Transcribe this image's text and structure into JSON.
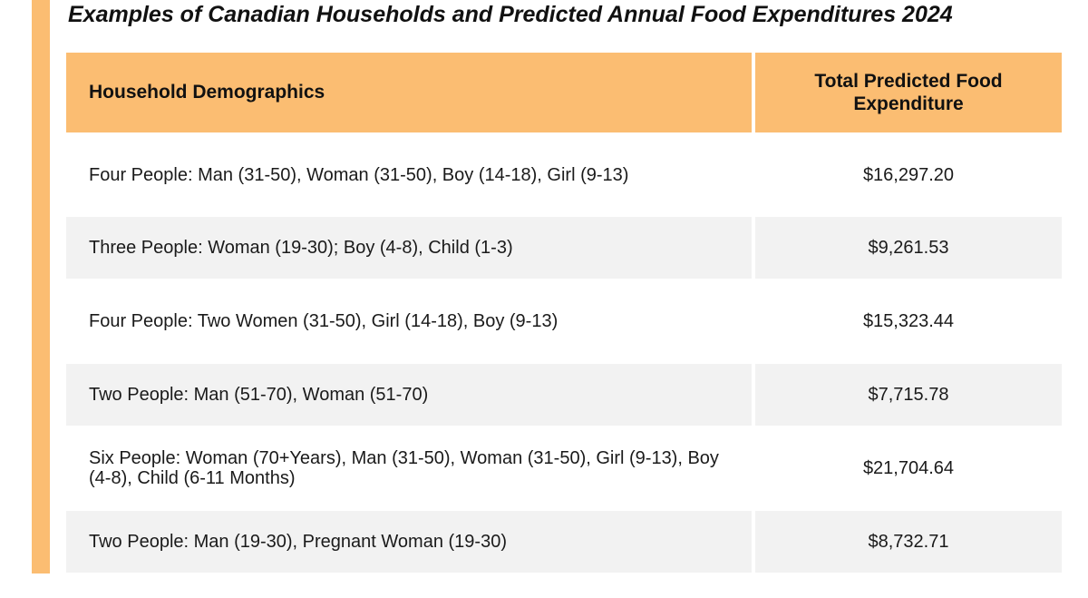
{
  "title": "Examples of Canadian Households and Predicted Annual Food Expenditures 2024",
  "table": {
    "headers": {
      "demographics": "Household Demographics",
      "total": "Total Predicted Food Expenditure"
    },
    "rows": [
      {
        "demographics": "Four People: Man (31-50), Woman (31-50), Boy (14-18), Girl (9-13)",
        "total": "$16,297.20"
      },
      {
        "demographics": "Three People: Woman (19-30); Boy (4-8), Child (1-3)",
        "total": "$9,261.53"
      },
      {
        "demographics": "Four People: Two Women (31-50), Girl (14-18), Boy (9-13)",
        "total": "$15,323.44"
      },
      {
        "demographics": "Two People: Man (51-70), Woman (51-70)",
        "total": "$7,715.78"
      },
      {
        "demographics": "Six People: Woman (70+Years), Man (31-50), Woman (31-50), Girl (9-13), Boy (4-8), Child (6-11 Months)",
        "total": "$21,704.64"
      },
      {
        "demographics": "Two People: Man (19-30), Pregnant Woman (19-30)",
        "total": "$8,732.71"
      }
    ]
  },
  "colors": {
    "accent": "#fbbd72",
    "row_alt": "#f2f2f2"
  }
}
